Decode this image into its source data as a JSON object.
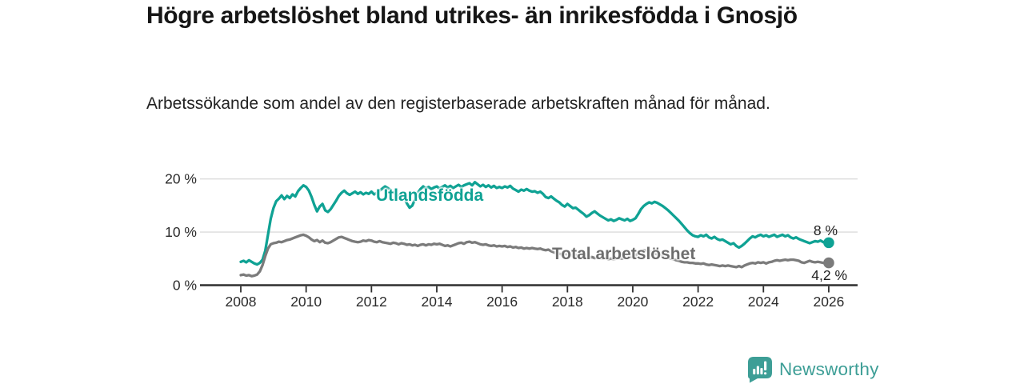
{
  "chart_data": {
    "type": "line",
    "title": "Högre arbetslöshet bland utrikes- än inrikesfödda i Gnosjö",
    "subtitle": "Arbetssökande som andel av den registerbaserade arbetskraften månad för månad.",
    "xlabel": "",
    "ylabel": "",
    "x_start_year": 2008,
    "points_per_year": 12,
    "x_ticks": [
      "2008",
      "2010",
      "2012",
      "2014",
      "2016",
      "2018",
      "2020",
      "2022",
      "2024",
      "2026"
    ],
    "y_ticks": [
      {
        "value": 0,
        "label": "0 %"
      },
      {
        "value": 10,
        "label": "10 %"
      },
      {
        "value": 20,
        "label": "20 %"
      }
    ],
    "ylim": [
      0,
      21
    ],
    "grid": "horizontal",
    "legend": "inline-labels",
    "series": [
      {
        "name": "Utlandsfödda",
        "color": "#0fa294",
        "end_label": "8 %",
        "end_value": 8.0,
        "values": [
          4.4,
          4.6,
          4.3,
          4.7,
          4.4,
          4.1,
          3.9,
          4.2,
          4.8,
          6.5,
          9.5,
          12.5,
          14.5,
          15.8,
          16.3,
          16.9,
          16.2,
          16.8,
          16.4,
          17.1,
          16.7,
          17.7,
          18.3,
          18.8,
          18.5,
          17.8,
          16.6,
          15.1,
          13.9,
          14.8,
          15.3,
          14.1,
          13.8,
          14.3,
          15.1,
          15.9,
          16.8,
          17.4,
          17.8,
          17.3,
          17.0,
          17.3,
          17.6,
          17.2,
          17.5,
          17.1,
          17.4,
          17.2,
          17.6,
          17.1,
          17.4,
          17.8,
          18.2,
          18.6,
          18.3,
          17.9,
          17.5,
          17.1,
          16.8,
          17.3,
          16.5,
          15.4,
          14.6,
          15.0,
          16.2,
          17.4,
          18.1,
          18.6,
          18.2,
          18.5,
          18.1,
          18.4,
          18.6,
          18.2,
          18.5,
          18.8,
          18.4,
          18.7,
          18.3,
          18.6,
          18.9,
          18.5,
          18.8,
          19.0,
          19.2,
          18.8,
          19.4,
          19.0,
          18.6,
          18.9,
          18.5,
          18.8,
          18.4,
          18.7,
          18.3,
          18.5,
          18.3,
          18.6,
          18.4,
          18.7,
          18.2,
          17.9,
          17.6,
          18.0,
          17.8,
          18.1,
          17.8,
          17.6,
          17.7,
          17.4,
          17.6,
          17.2,
          16.6,
          16.4,
          16.7,
          16.3,
          15.9,
          15.6,
          15.1,
          14.8,
          15.3,
          14.9,
          14.5,
          14.6,
          14.2,
          13.8,
          13.4,
          12.9,
          13.2,
          13.6,
          13.9,
          13.5,
          13.1,
          12.8,
          12.5,
          12.2,
          12.4,
          12.1,
          12.3,
          12.6,
          12.4,
          12.2,
          12.5,
          12.1,
          12.3,
          12.6,
          13.4,
          14.3,
          14.9,
          15.3,
          15.6,
          15.4,
          15.7,
          15.5,
          15.2,
          14.9,
          14.5,
          14.1,
          13.6,
          13.1,
          12.6,
          12.1,
          11.5,
          10.9,
          10.3,
          9.8,
          9.4,
          9.2,
          9.1,
          9.4,
          9.2,
          9.5,
          9.0,
          8.8,
          9.1,
          8.7,
          8.5,
          8.6,
          8.3,
          8.0,
          7.7,
          7.9,
          7.4,
          7.1,
          7.4,
          7.8,
          8.3,
          8.8,
          9.2,
          9.0,
          9.3,
          9.5,
          9.2,
          9.4,
          9.1,
          9.3,
          9.5,
          9.1,
          9.3,
          9.5,
          9.2,
          9.4,
          9.0,
          8.8,
          9.0,
          8.7,
          8.5,
          8.3,
          8.1,
          7.9,
          8.1,
          8.3,
          8.2,
          8.4,
          8.1,
          8.0,
          8.0
        ]
      },
      {
        "name": "Total arbetslöshet",
        "color": "#7b7b7b",
        "end_label": "4,2 %",
        "end_value": 4.2,
        "values": [
          1.9,
          2.0,
          1.8,
          1.9,
          1.7,
          1.8,
          2.0,
          2.6,
          3.8,
          5.5,
          6.9,
          7.7,
          7.9,
          8.0,
          8.2,
          8.1,
          8.3,
          8.5,
          8.6,
          8.8,
          9.0,
          9.2,
          9.4,
          9.5,
          9.3,
          9.0,
          8.6,
          8.3,
          8.5,
          8.1,
          8.4,
          8.0,
          7.9,
          8.1,
          8.4,
          8.7,
          9.0,
          9.1,
          8.9,
          8.7,
          8.5,
          8.3,
          8.2,
          8.1,
          8.2,
          8.4,
          8.3,
          8.5,
          8.4,
          8.2,
          8.1,
          8.3,
          8.1,
          8.0,
          7.9,
          7.8,
          8.0,
          7.9,
          7.7,
          7.9,
          7.8,
          7.6,
          7.7,
          7.5,
          7.6,
          7.4,
          7.6,
          7.7,
          7.5,
          7.7,
          7.6,
          7.8,
          7.7,
          7.8,
          7.6,
          7.4,
          7.5,
          7.3,
          7.5,
          7.7,
          7.9,
          8.0,
          7.8,
          8.1,
          8.2,
          8.0,
          8.1,
          7.9,
          7.7,
          7.6,
          7.7,
          7.5,
          7.4,
          7.5,
          7.3,
          7.4,
          7.3,
          7.4,
          7.2,
          7.3,
          7.1,
          7.2,
          7.0,
          7.1,
          6.9,
          7.0,
          6.9,
          7.0,
          6.9,
          6.8,
          6.9,
          6.7,
          6.6,
          6.7,
          6.4,
          6.2,
          6.0,
          5.9,
          5.8,
          5.9,
          5.8,
          5.7,
          5.6,
          5.7,
          5.5,
          5.4,
          5.3,
          5.4,
          5.2,
          5.3,
          5.1,
          5.2,
          5.1,
          5.0,
          5.1,
          4.9,
          5.0,
          4.9,
          5.0,
          5.1,
          5.0,
          5.2,
          5.1,
          5.3,
          5.4,
          5.6,
          6.0,
          6.4,
          6.6,
          6.5,
          6.4,
          6.2,
          6.0,
          5.8,
          5.6,
          5.5,
          5.4,
          5.2,
          5.0,
          4.9,
          4.7,
          4.6,
          4.4,
          4.3,
          4.3,
          4.2,
          4.2,
          4.1,
          4.1,
          4.0,
          4.1,
          3.9,
          3.8,
          3.9,
          3.8,
          3.7,
          3.6,
          3.7,
          3.6,
          3.7,
          3.6,
          3.5,
          3.4,
          3.6,
          3.4,
          3.7,
          3.9,
          4.1,
          4.2,
          4.1,
          4.3,
          4.2,
          4.3,
          4.1,
          4.3,
          4.4,
          4.6,
          4.7,
          4.6,
          4.7,
          4.8,
          4.7,
          4.8,
          4.8,
          4.7,
          4.6,
          4.3,
          4.2,
          4.4,
          4.6,
          4.4,
          4.3,
          4.4,
          4.3,
          4.2,
          4.2,
          4.2
        ]
      }
    ]
  },
  "footer": {
    "brand": "Newsworthy"
  },
  "colors": {
    "accent_teal": "#0fa294",
    "brand_teal": "#3d9e96",
    "line_gray": "#7b7b7b",
    "grid": "#dcdcdc",
    "axis": "#2f2f2f",
    "text": "#1e1e1e"
  }
}
